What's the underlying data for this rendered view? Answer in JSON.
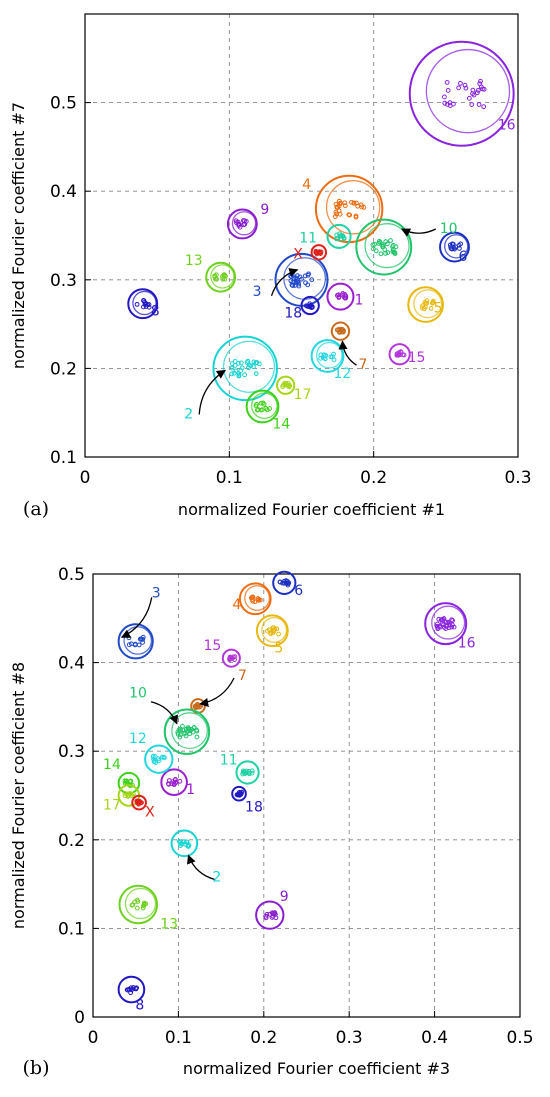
{
  "chart_data": [
    {
      "type": "scatter",
      "panel": "(a)",
      "xlabel": "normalized Fourier coefficient #1",
      "ylabel": "normalized Fourier coefficient #7",
      "xlim": [
        0,
        0.3
      ],
      "ylim": [
        0.1,
        0.6
      ],
      "xticks": [
        "0",
        "0.1",
        "0.2",
        "0.3"
      ],
      "yticks": [
        "0.1",
        "0.2",
        "0.3",
        "0.4",
        "0.5"
      ],
      "grid": true,
      "clusters": [
        {
          "label": "1",
          "x": 0.177,
          "y": 0.281,
          "r": 0.009,
          "color": "#9b1fd1"
        },
        {
          "label": "2",
          "x": 0.111,
          "y": 0.2,
          "r": 0.022,
          "color": "#17d4d4"
        },
        {
          "label": "3",
          "x": 0.15,
          "y": 0.3,
          "r": 0.018,
          "color": "#2149c9"
        },
        {
          "label": "4",
          "x": 0.183,
          "y": 0.38,
          "r": 0.023,
          "color": "#ee6c12"
        },
        {
          "label": "5",
          "x": 0.236,
          "y": 0.272,
          "r": 0.012,
          "color": "#e8b80e"
        },
        {
          "label": "6",
          "x": 0.256,
          "y": 0.337,
          "r": 0.01,
          "color": "#1d2fc2"
        },
        {
          "label": "7",
          "x": 0.177,
          "y": 0.242,
          "r": 0.006,
          "color": "#c96a1d"
        },
        {
          "label": "8",
          "x": 0.04,
          "y": 0.273,
          "r": 0.01,
          "color": "#2218c4"
        },
        {
          "label": "9",
          "x": 0.109,
          "y": 0.363,
          "r": 0.01,
          "color": "#8a1ed0"
        },
        {
          "label": "10",
          "x": 0.207,
          "y": 0.337,
          "r": 0.019,
          "color": "#21c46a"
        },
        {
          "label": "11",
          "x": 0.176,
          "y": 0.349,
          "r": 0.008,
          "color": "#1fd1a3"
        },
        {
          "label": "12",
          "x": 0.168,
          "y": 0.214,
          "r": 0.011,
          "color": "#24d6e0"
        },
        {
          "label": "13",
          "x": 0.094,
          "y": 0.303,
          "r": 0.01,
          "color": "#6ed11f"
        },
        {
          "label": "14",
          "x": 0.123,
          "y": 0.157,
          "r": 0.011,
          "color": "#3ed11a"
        },
        {
          "label": "15",
          "x": 0.218,
          "y": 0.216,
          "r": 0.007,
          "color": "#b437db"
        },
        {
          "label": "16",
          "x": 0.261,
          "y": 0.51,
          "r": 0.036,
          "color": "#8a24e0"
        },
        {
          "label": "17",
          "x": 0.139,
          "y": 0.181,
          "r": 0.006,
          "color": "#a6d61a"
        },
        {
          "label": "18",
          "x": 0.156,
          "y": 0.271,
          "r": 0.006,
          "color": "#2119c4"
        },
        {
          "label": "X",
          "x": 0.162,
          "y": 0.331,
          "r": 0.005,
          "color": "#e0201a"
        }
      ]
    },
    {
      "type": "scatter",
      "panel": "(b)",
      "xlabel": "normalized Fourier coefficient #3",
      "ylabel": "normalized Fourier coefficient #8",
      "xlim": [
        0,
        0.5
      ],
      "ylim": [
        0,
        0.5
      ],
      "xticks": [
        "0",
        "0.1",
        "0.2",
        "0.3",
        "0.4",
        "0.5"
      ],
      "yticks": [
        "0",
        "0.1",
        "0.2",
        "0.3",
        "0.4",
        "0.5"
      ],
      "grid": true,
      "clusters": [
        {
          "label": "1",
          "x": 0.095,
          "y": 0.265,
          "r": 0.015,
          "color": "#9b1fd1"
        },
        {
          "label": "2",
          "x": 0.107,
          "y": 0.196,
          "r": 0.015,
          "color": "#17d4d4"
        },
        {
          "label": "3",
          "x": 0.05,
          "y": 0.424,
          "r": 0.02,
          "color": "#2149c9"
        },
        {
          "label": "4",
          "x": 0.19,
          "y": 0.472,
          "r": 0.018,
          "color": "#ee6c12"
        },
        {
          "label": "5",
          "x": 0.21,
          "y": 0.436,
          "r": 0.018,
          "color": "#e8b80e"
        },
        {
          "label": "6",
          "x": 0.224,
          "y": 0.49,
          "r": 0.013,
          "color": "#1d2fc2"
        },
        {
          "label": "7",
          "x": 0.123,
          "y": 0.351,
          "r": 0.008,
          "color": "#c96a1d"
        },
        {
          "label": "8",
          "x": 0.045,
          "y": 0.031,
          "r": 0.015,
          "color": "#2218c4"
        },
        {
          "label": "9",
          "x": 0.207,
          "y": 0.115,
          "r": 0.016,
          "color": "#8a1ed0"
        },
        {
          "label": "10",
          "x": 0.11,
          "y": 0.322,
          "r": 0.026,
          "color": "#21c46a"
        },
        {
          "label": "11",
          "x": 0.181,
          "y": 0.276,
          "r": 0.013,
          "color": "#1fd1a3"
        },
        {
          "label": "12",
          "x": 0.077,
          "y": 0.291,
          "r": 0.016,
          "color": "#24d6e0"
        },
        {
          "label": "13",
          "x": 0.053,
          "y": 0.127,
          "r": 0.022,
          "color": "#6ed11f"
        },
        {
          "label": "14",
          "x": 0.042,
          "y": 0.264,
          "r": 0.012,
          "color": "#3ed11a"
        },
        {
          "label": "15",
          "x": 0.162,
          "y": 0.405,
          "r": 0.01,
          "color": "#b437db"
        },
        {
          "label": "16",
          "x": 0.413,
          "y": 0.444,
          "r": 0.024,
          "color": "#8a24e0"
        },
        {
          "label": "17",
          "x": 0.042,
          "y": 0.25,
          "r": 0.012,
          "color": "#a6d61a"
        },
        {
          "label": "18",
          "x": 0.171,
          "y": 0.252,
          "r": 0.008,
          "color": "#2119c4"
        },
        {
          "label": "X",
          "x": 0.054,
          "y": 0.242,
          "r": 0.008,
          "color": "#e0201a"
        }
      ]
    }
  ]
}
